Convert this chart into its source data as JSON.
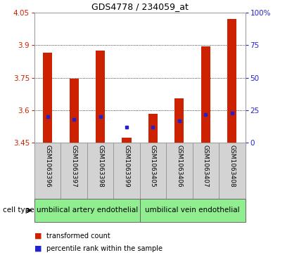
{
  "title": "GDS4778 / 234059_at",
  "samples": [
    "GSM1063396",
    "GSM1063397",
    "GSM1063398",
    "GSM1063399",
    "GSM1063405",
    "GSM1063406",
    "GSM1063407",
    "GSM1063408"
  ],
  "red_values": [
    3.865,
    3.745,
    3.875,
    3.475,
    3.585,
    3.655,
    3.895,
    4.02
  ],
  "blue_percentiles": [
    20,
    18,
    20,
    12,
    12,
    17,
    22,
    23
  ],
  "y_min": 3.45,
  "y_max": 4.05,
  "y_ticks": [
    3.45,
    3.6,
    3.75,
    3.9,
    4.05
  ],
  "y_tick_labels": [
    "3.45",
    "3.6",
    "3.75",
    "3.9",
    "4.05"
  ],
  "right_y_ticks": [
    0,
    25,
    50,
    75,
    100
  ],
  "right_y_tick_labels": [
    "0",
    "25",
    "50",
    "75",
    "100%"
  ],
  "bar_color": "#cc2200",
  "dot_color": "#2222cc",
  "background_color": "#ffffff",
  "cell_type_groups": [
    {
      "label": "umbilical artery endothelial",
      "start": 0,
      "end": 3
    },
    {
      "label": "umbilical vein endothelial",
      "start": 4,
      "end": 7
    }
  ],
  "cell_type_bg": "#90ee90",
  "label_box_bg": "#d3d3d3",
  "legend_items": [
    "transformed count",
    "percentile rank within the sample"
  ],
  "title_fontsize": 9,
  "axis_fontsize": 7.5,
  "label_fontsize": 6.5,
  "cell_fontsize": 7.5
}
